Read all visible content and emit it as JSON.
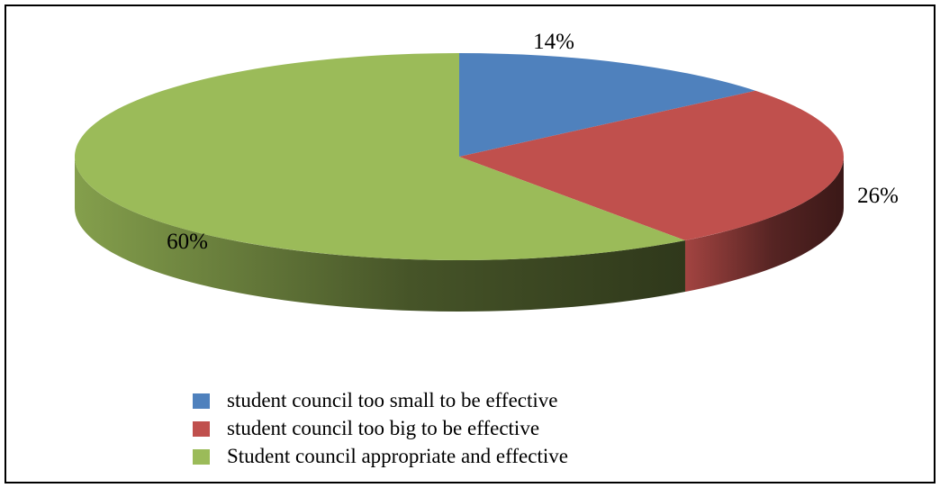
{
  "chart_data": {
    "type": "pie",
    "style": "3d",
    "title": "",
    "slices": [
      {
        "label": "student council too small to be effective",
        "value": 14,
        "display": "14%",
        "color": "#4F81BD"
      },
      {
        "label": "student council too big to be effective",
        "value": 26,
        "display": "26%",
        "color": "#C0504D"
      },
      {
        "label": "Student council appropriate and effective",
        "value": 60,
        "display": "60%",
        "color": "#9BBB59"
      }
    ],
    "legend_position": "bottom"
  }
}
